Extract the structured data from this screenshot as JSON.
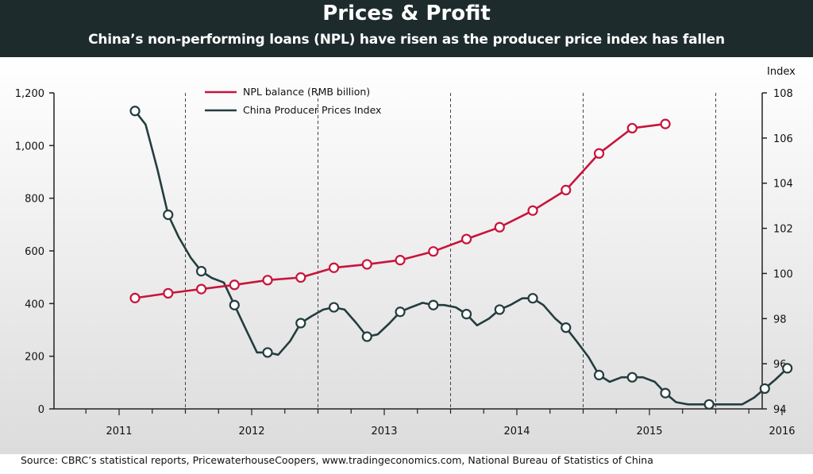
{
  "header": {
    "title": "Prices & Profit",
    "subtitle": "China’s non-performing loans (NPL) have risen as the producer price index has fallen"
  },
  "source": "Source: CBRC’s statistical reports, PricewaterhouseCoopers, www.tradingeconomics.com, National Bureau of Statistics of China",
  "colors": {
    "header_bg": "#1d2b2c",
    "npl": "#c8143c",
    "ppi": "#243d3f",
    "grid": "#333333"
  },
  "chart_data": {
    "type": "line",
    "title": "Prices & Profit",
    "subtitle": "China’s non-performing loans (NPL) have risen as the producer price index has fallen",
    "x_ticks": [
      "2011",
      "2012",
      "2013",
      "2014",
      "2015",
      "2016"
    ],
    "xlim": [
      2010.5,
      2016.3
    ],
    "y_left": {
      "label": "",
      "lim": [
        0,
        1200
      ],
      "ticks": [
        "0",
        "200",
        "400",
        "600",
        "800",
        "1,000",
        "1,200"
      ]
    },
    "y_right": {
      "label": "Index",
      "lim": [
        94,
        108
      ],
      "ticks": [
        "94",
        "96",
        "98",
        "100",
        "102",
        "104",
        "106",
        "108"
      ]
    },
    "grid": "vertical dashed lines between years",
    "legend_position": "top-left",
    "series": [
      {
        "name": "NPL balance (RMB billion)",
        "axis": "left",
        "color": "#c8143c",
        "x": [
          2011.12,
          2011.37,
          2011.62,
          2011.87,
          2012.12,
          2012.37,
          2012.62,
          2012.87,
          2013.12,
          2013.37,
          2013.62,
          2013.87,
          2014.12,
          2014.37,
          2014.62,
          2014.87,
          2015.12
        ],
        "values": [
          421,
          439,
          455,
          471,
          489,
          499,
          536,
          549,
          565,
          598,
          645,
          690,
          753,
          831,
          970,
          1066,
          1082
        ]
      },
      {
        "name": "China Producer Prices Index",
        "axis": "right",
        "color": "#243d3f",
        "x": [
          2011.12,
          2011.2,
          2011.29,
          2011.37,
          2011.45,
          2011.54,
          2011.62,
          2011.7,
          2011.79,
          2011.87,
          2011.95,
          2012.04,
          2012.12,
          2012.2,
          2012.29,
          2012.37,
          2012.45,
          2012.54,
          2012.62,
          2012.7,
          2012.79,
          2012.87,
          2012.95,
          2013.04,
          2013.12,
          2013.2,
          2013.29,
          2013.37,
          2013.45,
          2013.54,
          2013.62,
          2013.7,
          2013.79,
          2013.87,
          2013.95,
          2014.04,
          2014.12,
          2014.2,
          2014.29,
          2014.37,
          2014.45,
          2014.54,
          2014.62,
          2014.7,
          2014.79,
          2014.87,
          2014.95,
          2015.04,
          2015.12,
          2015.2,
          2015.29,
          2015.37,
          2015.45,
          2015.54,
          2015.62,
          2015.7,
          2015.79,
          2015.87,
          2015.95,
          2016.04
        ],
        "values": [
          107.2,
          106.6,
          104.6,
          102.6,
          101.6,
          100.7,
          100.1,
          99.8,
          99.6,
          98.6,
          97.6,
          96.5,
          96.5,
          96.4,
          97.0,
          97.8,
          98.1,
          98.4,
          98.5,
          98.4,
          97.8,
          97.2,
          97.3,
          97.8,
          98.3,
          98.5,
          98.7,
          98.6,
          98.6,
          98.5,
          98.2,
          97.7,
          98.0,
          98.4,
          98.6,
          98.9,
          98.9,
          98.6,
          98.0,
          97.6,
          97.0,
          96.3,
          95.5,
          95.2,
          95.4,
          95.4,
          95.4,
          95.2,
          94.7,
          94.3,
          94.2,
          94.2,
          94.2,
          94.2,
          94.2,
          94.2,
          94.5,
          94.9,
          95.3,
          95.8
        ]
      }
    ],
    "markers_ppi_x": [
      2011.12,
      2011.37,
      2011.62,
      2011.87,
      2012.12,
      2012.37,
      2012.62,
      2012.87,
      2013.12,
      2013.37,
      2013.62,
      2013.87,
      2014.12,
      2014.37,
      2014.62,
      2014.87,
      2015.12,
      2015.45,
      2015.87,
      2016.04
    ]
  }
}
